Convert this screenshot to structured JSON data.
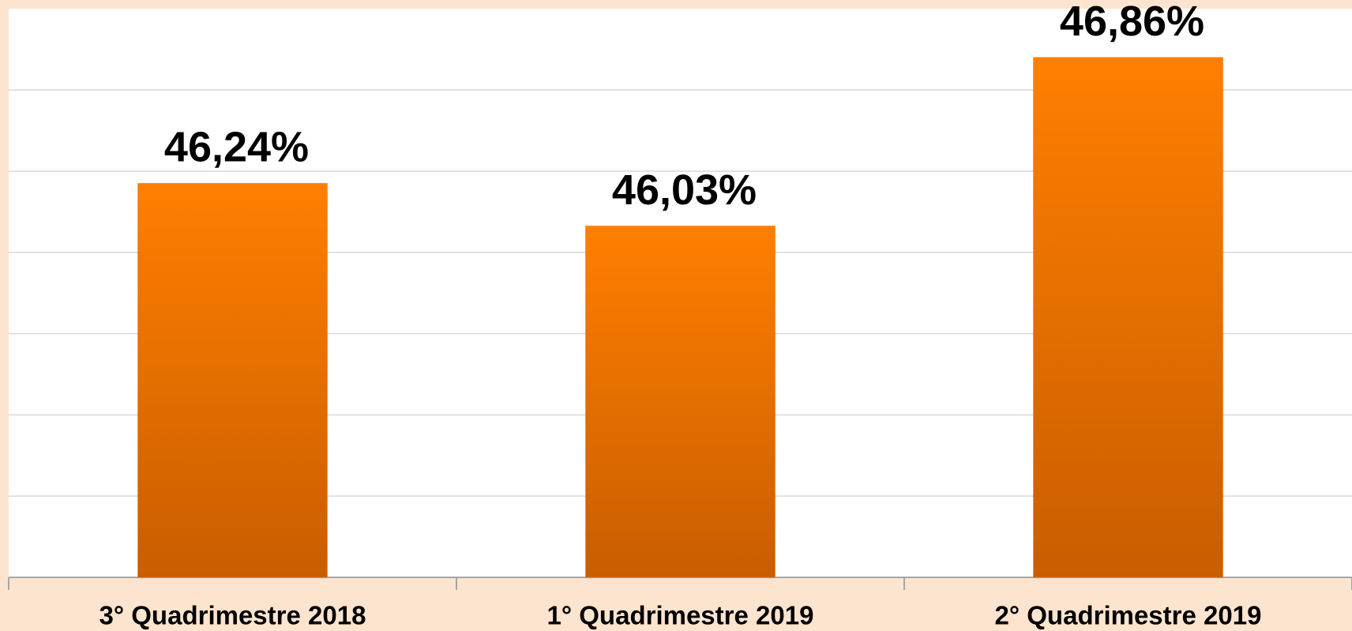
{
  "chart_data": {
    "type": "bar",
    "categories": [
      "3° Quadrimestre 2018",
      "1° Quadrimestre 2019",
      "2° Quadrimestre 2019"
    ],
    "values": [
      46.24,
      46.03,
      46.86
    ],
    "value_labels": [
      "46,24%",
      "46,03%",
      "46,86%"
    ],
    "color": "#f07400",
    "ylim": [
      44.3,
      47.1
    ],
    "yticks": [
      44.3,
      44.7,
      45.1,
      45.5,
      45.9,
      46.3,
      46.7
    ],
    "grid": true
  }
}
